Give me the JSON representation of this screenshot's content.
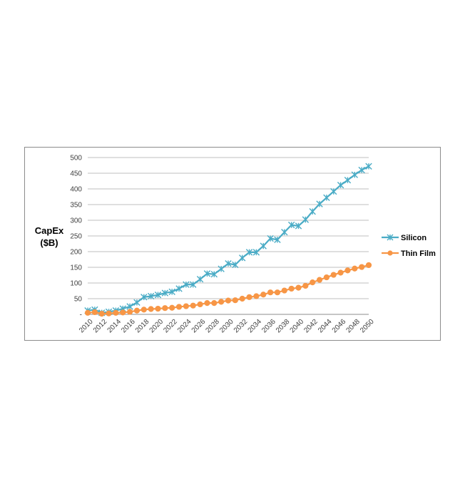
{
  "chart_data": {
    "type": "line",
    "title": "",
    "xlabel": "",
    "ylabel": [
      "CapEx",
      "($B)"
    ],
    "ylim": [
      0,
      500
    ],
    "yticks": [
      0,
      50,
      100,
      150,
      200,
      250,
      300,
      350,
      400,
      450,
      500
    ],
    "ytick_labels": [
      "-",
      "50",
      "100",
      "150",
      "200",
      "250",
      "300",
      "350",
      "400",
      "450",
      "500"
    ],
    "grid": true,
    "legend": "right",
    "x": [
      2010,
      2011,
      2012,
      2013,
      2014,
      2015,
      2016,
      2017,
      2018,
      2019,
      2020,
      2021,
      2022,
      2023,
      2024,
      2025,
      2026,
      2027,
      2028,
      2029,
      2030,
      2031,
      2032,
      2033,
      2034,
      2035,
      2036,
      2037,
      2038,
      2039,
      2040,
      2041,
      2042,
      2043,
      2044,
      2045,
      2046,
      2047,
      2048,
      2049,
      2050
    ],
    "xtick_labels": [
      "2010",
      "2012",
      "2014",
      "2016",
      "2018",
      "2020",
      "2022",
      "2024",
      "2026",
      "2028",
      "2030",
      "2032",
      "2034",
      "2036",
      "2038",
      "2040",
      "2042",
      "2044",
      "2046",
      "2048",
      "2050"
    ],
    "series": [
      {
        "name": "Silicon",
        "color": "#4bacc6",
        "marker": "star",
        "values": [
          12,
          15,
          5,
          8,
          12,
          18,
          25,
          38,
          55,
          58,
          62,
          68,
          72,
          82,
          95,
          95,
          112,
          130,
          128,
          145,
          162,
          158,
          180,
          198,
          198,
          218,
          242,
          238,
          262,
          285,
          282,
          302,
          328,
          352,
          372,
          392,
          412,
          428,
          445,
          460,
          472
        ]
      },
      {
        "name": "Thin Film",
        "color": "#f79646",
        "marker": "circle",
        "values": [
          5,
          7,
          2,
          3,
          5,
          6,
          8,
          12,
          15,
          17,
          18,
          20,
          21,
          24,
          26,
          28,
          32,
          36,
          36,
          40,
          44,
          45,
          50,
          55,
          58,
          63,
          70,
          70,
          76,
          82,
          85,
          91,
          102,
          110,
          118,
          126,
          133,
          140,
          146,
          151,
          157
        ]
      }
    ]
  }
}
